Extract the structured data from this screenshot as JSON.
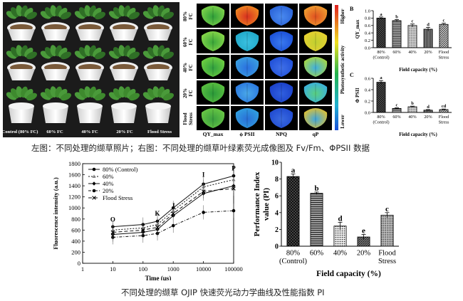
{
  "photo": {
    "labels": [
      "Control (80% FC)",
      "60% FC",
      "40% FC",
      "20% FC",
      "Flood Stress"
    ]
  },
  "imaging": {
    "row_labels": [
      "80%\nFC",
      "60%\nFC",
      "40%\nFC",
      "20%\nFC",
      "Flood\nStress"
    ],
    "col_labels": [
      "QY_max",
      "ϕ PSII",
      "NPQ",
      "qP"
    ],
    "scale_top": "Higher",
    "scale_mid": "Photosynthetic activity",
    "scale_bottom": "Lower",
    "colors": {
      "high": "#e02020",
      "mid": "#22b14c",
      "low": "#1a4fd8"
    }
  },
  "caption1": "左图：不同处理的缬草照片；右图：不同处理的缬草叶绿素荧光成像图及 Fv/Fm、ΦPSII 数据",
  "caption2": "不同处理的缬草 OJIP 快速荧光动力学曲线及性能指数 PI",
  "chart_data": [
    {
      "panel": "B",
      "type": "bar",
      "categories": [
        "80%\n(Control)",
        "60%",
        "40%",
        "20%",
        "Flood\nStress"
      ],
      "values": [
        0.8,
        0.73,
        0.6,
        0.5,
        0.63
      ],
      "errors": [
        0.03,
        0.03,
        0.04,
        0.05,
        0.03
      ],
      "letters": [
        "a",
        "b",
        "c",
        "d",
        "c"
      ],
      "ylabel": "QY_max",
      "xlabel": "Field capacity (%)",
      "ylim": [
        0,
        1.0
      ],
      "yticks": [
        "0.0",
        "0.2",
        "0.4",
        "0.6",
        "0.8",
        "1.0"
      ]
    },
    {
      "panel": "C",
      "type": "bar",
      "categories": [
        "80%\n(Control)",
        "60%",
        "40%",
        "20%",
        "Flood\nStress"
      ],
      "values": [
        0.53,
        0.07,
        0.1,
        0.04,
        0.05
      ],
      "errors": [
        0.03,
        0.01,
        0.01,
        0.01,
        0.01
      ],
      "letters": [
        "a",
        "c",
        "b",
        "d",
        "cd"
      ],
      "ylabel": "Φ PSII",
      "xlabel": "Field capacity (%)",
      "ylim": [
        0,
        0.6
      ],
      "yticks": [
        "0.0",
        "0.2",
        "0.4",
        "0.6"
      ]
    },
    {
      "type": "line",
      "x": [
        10,
        100,
        300,
        1000,
        10000,
        100000
      ],
      "xscale": "log",
      "xlim": [
        1,
        100000
      ],
      "xticks": [
        "1",
        "10",
        "100",
        "1000",
        "10000",
        "100000"
      ],
      "ylim": [
        0,
        1800
      ],
      "yticks": [
        "0",
        "200",
        "400",
        "600",
        "800",
        "1000",
        "1200",
        "1400",
        "1600",
        "1800"
      ],
      "xlabel": "Time (μs)",
      "ylabel": "Fluorescence intensity (a.u.)",
      "annotations": [
        {
          "text": "O",
          "x": 10,
          "y": 750
        },
        {
          "text": "K",
          "x": 300,
          "y": 860
        },
        {
          "text": "J",
          "x": 1000,
          "y": 1000
        },
        {
          "text": "I",
          "x": 10000,
          "y": 1560
        },
        {
          "text": "P",
          "x": 100000,
          "y": 1680
        }
      ],
      "series": [
        {
          "name": "80% (Control)",
          "values": [
            660,
            700,
            760,
            1000,
            1430,
            1580
          ]
        },
        {
          "name": "60%",
          "values": [
            600,
            640,
            700,
            950,
            1380,
            1510
          ]
        },
        {
          "name": "40%",
          "values": [
            520,
            560,
            610,
            860,
            1260,
            1400
          ]
        },
        {
          "name": "20%",
          "values": [
            470,
            500,
            540,
            680,
            920,
            950
          ]
        },
        {
          "name": "Flood Stress",
          "values": [
            560,
            600,
            650,
            900,
            1300,
            1350
          ]
        }
      ]
    },
    {
      "type": "bar",
      "categories": [
        "80%\n(Control)",
        "60%",
        "40%",
        "20%",
        "Flood\nStress"
      ],
      "values": [
        8.3,
        6.3,
        2.4,
        1.1,
        3.7
      ],
      "errors": [
        0.3,
        0.15,
        0.45,
        0.3,
        0.3
      ],
      "letters": [
        "a",
        "b",
        "d",
        "e",
        "c"
      ],
      "ylabel": "Performance Index value (PI)",
      "xlabel": "Field capacity (%)",
      "ylim": [
        0,
        10
      ],
      "yticks": [
        "0",
        "2",
        "4",
        "6",
        "8",
        "10"
      ]
    }
  ]
}
